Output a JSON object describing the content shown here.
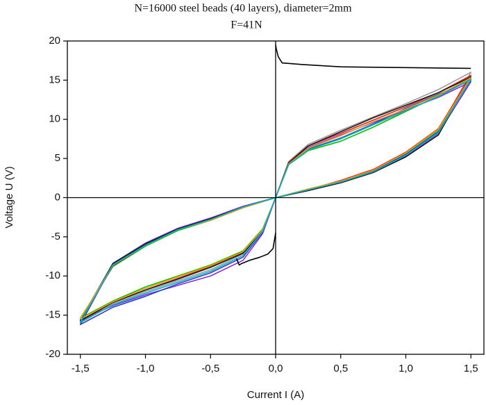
{
  "chart_data": {
    "type": "line",
    "title": "N=16000 steel beads (40 layers), diameter=2mm",
    "subtitle": "F=41N",
    "xlabel": "Current I (A)",
    "ylabel": "Voltage U (V)",
    "xlim": [
      -1.6,
      1.6
    ],
    "ylim": [
      -20,
      20
    ],
    "xticks": [
      {
        "value": -1.5,
        "label": "-1,5"
      },
      {
        "value": -1.0,
        "label": "-1,0"
      },
      {
        "value": -0.5,
        "label": "-0,5"
      },
      {
        "value": 0,
        "label": "0,0"
      },
      {
        "value": 0.5,
        "label": "0,5"
      },
      {
        "value": 1.0,
        "label": "1,0"
      },
      {
        "value": 1.5,
        "label": "1,5"
      }
    ],
    "yticks": [
      -20,
      -15,
      -10,
      -5,
      0,
      5,
      10,
      15,
      20
    ],
    "zero_lines": true,
    "series": [
      {
        "color": "#9a9a9a",
        "x": [
          0,
          0.25,
          0.5,
          0.75,
          1.0,
          1.25,
          1.5,
          1.25,
          1.0,
          0.75,
          0.5,
          0.25,
          0.1,
          0,
          -0.25,
          -0.5,
          -0.75,
          -1.0,
          -1.25,
          -1.5,
          -1.25,
          -1.0,
          -0.75,
          -0.5,
          -0.25,
          -0.1,
          0
        ],
        "values": [
          0,
          1.0,
          2.0,
          3.3,
          5.5,
          8.5,
          16.0,
          13.8,
          12.0,
          10.3,
          8.6,
          6.8,
          4.6,
          0,
          -1.2,
          -2.8,
          -4.0,
          -6.0,
          -8.6,
          -16.0,
          -13.6,
          -12.0,
          -10.6,
          -9.2,
          -7.2,
          -4.2,
          0
        ]
      },
      {
        "color": "#00c000",
        "x": [
          0,
          0.25,
          0.5,
          0.75,
          1.0,
          1.25,
          1.5,
          1.25,
          1.0,
          0.75,
          0.5,
          0.25,
          0.1,
          0,
          -0.25,
          -0.5,
          -0.75,
          -1.0,
          -1.25,
          -1.5,
          -1.25,
          -1.0,
          -0.75,
          -0.5,
          -0.25,
          -0.1,
          0
        ],
        "values": [
          0,
          1.1,
          2.1,
          3.4,
          5.6,
          8.6,
          15.2,
          13.0,
          11.0,
          9.0,
          7.2,
          6.0,
          4.2,
          0,
          -1.3,
          -2.9,
          -4.2,
          -6.2,
          -8.8,
          -15.4,
          -13.2,
          -11.4,
          -10.0,
          -8.6,
          -6.8,
          -4.0,
          0
        ]
      },
      {
        "color": "#8a2be2",
        "x": [
          0,
          0.25,
          0.5,
          0.75,
          1.0,
          1.25,
          1.5,
          1.25,
          1.0,
          0.75,
          0.5,
          0.25,
          0.1,
          0,
          -0.25,
          -0.5,
          -0.75,
          -1.0,
          -1.25,
          -1.5,
          -1.25,
          -1.0,
          -0.75,
          -0.5,
          -0.25,
          -0.1,
          0
        ],
        "values": [
          0,
          0.9,
          1.9,
          3.2,
          5.3,
          8.2,
          14.8,
          12.8,
          11.2,
          9.6,
          8.0,
          6.4,
          4.4,
          0,
          -1.1,
          -2.6,
          -3.9,
          -5.8,
          -8.4,
          -15.6,
          -13.8,
          -12.4,
          -11.2,
          -10.0,
          -8.0,
          -4.6,
          0
        ]
      },
      {
        "color": "#d62728",
        "x": [
          0,
          0.25,
          0.5,
          0.75,
          1.0,
          1.25,
          1.5,
          1.25,
          1.0,
          0.75,
          0.5,
          0.25,
          0.1,
          0,
          -0.25,
          -0.5,
          -0.75,
          -1.0,
          -1.25,
          -1.5,
          -1.25,
          -1.0,
          -0.75,
          -0.5,
          -0.25,
          -0.1,
          0
        ],
        "values": [
          0,
          1.0,
          2.2,
          3.6,
          5.8,
          8.8,
          15.6,
          13.4,
          11.6,
          9.9,
          8.2,
          6.6,
          4.5,
          0,
          -1.2,
          -2.7,
          -4.1,
          -6.1,
          -8.7,
          -15.8,
          -13.4,
          -11.8,
          -10.3,
          -8.8,
          -7.0,
          -4.3,
          0
        ]
      },
      {
        "color": "#2440c8",
        "x": [
          0,
          0.25,
          0.5,
          0.75,
          1.0,
          1.25,
          1.5,
          1.25,
          1.0,
          0.75,
          0.5,
          0.25,
          0.1,
          0,
          -0.25,
          -0.5,
          -0.75,
          -1.0,
          -1.25,
          -1.5,
          -1.25,
          -1.0,
          -0.75,
          -0.5,
          -0.25,
          -0.1,
          0
        ],
        "values": [
          0,
          1.0,
          2.0,
          3.4,
          5.5,
          8.4,
          15.0,
          13.2,
          11.4,
          9.4,
          7.6,
          6.2,
          4.3,
          0,
          -1.2,
          -2.8,
          -4.0,
          -6.0,
          -8.5,
          -16.2,
          -14.0,
          -12.6,
          -11.0,
          -9.6,
          -7.6,
          -4.4,
          0
        ]
      },
      {
        "color": "#1a1a1a",
        "x": [
          0,
          0.25,
          0.5,
          0.75,
          1.0,
          1.25,
          1.5,
          1.25,
          1.0,
          0.75,
          0.5,
          0.25,
          0.1,
          0,
          -0.25,
          -0.5,
          -0.75,
          -1.0,
          -1.25,
          -1.5,
          -1.25,
          -1.0,
          -0.75,
          -0.5,
          -0.25,
          -0.1,
          0
        ],
        "values": [
          0,
          0.9,
          1.9,
          3.2,
          5.2,
          8.0,
          15.4,
          13.4,
          11.8,
          10.2,
          8.4,
          6.6,
          4.4,
          0,
          -1.2,
          -2.7,
          -4.0,
          -5.9,
          -8.4,
          -15.7,
          -13.4,
          -11.8,
          -10.4,
          -8.9,
          -7.1,
          -4.2,
          0
        ]
      },
      {
        "color": "#ff9900",
        "x": [
          0,
          0.25,
          0.5,
          0.75,
          1.0,
          1.25,
          1.5,
          1.25,
          1.0,
          0.75,
          0.5,
          0.25,
          0.1,
          0,
          -0.25,
          -0.5,
          -0.75,
          -1.0,
          -1.25,
          -1.5,
          -1.25,
          -1.0,
          -0.75,
          -0.5,
          -0.25,
          -0.1,
          0
        ],
        "values": [
          0,
          1.1,
          2.1,
          3.5,
          5.7,
          8.7,
          15.3,
          13.1,
          11.3,
          9.7,
          7.9,
          6.3,
          4.3,
          0,
          -1.3,
          -2.9,
          -4.1,
          -6.1,
          -8.6,
          -15.5,
          -13.3,
          -11.6,
          -10.1,
          -8.7,
          -6.9,
          -4.1,
          0
        ]
      },
      {
        "color": "#00b5c8",
        "x": [
          0,
          0.25,
          0.5,
          0.75,
          1.0,
          1.25,
          1.5,
          1.25,
          1.0,
          0.75,
          0.5,
          0.25,
          0.1,
          0,
          -0.25,
          -0.5,
          -0.75,
          -1.0,
          -1.25,
          -1.5,
          -1.25,
          -1.0,
          -0.75,
          -0.5,
          -0.25,
          -0.1,
          0
        ],
        "values": [
          0,
          1.0,
          2.0,
          3.3,
          5.4,
          8.3,
          15.1,
          12.9,
          11.1,
          9.3,
          7.5,
          6.1,
          4.2,
          0,
          -1.2,
          -2.8,
          -4.1,
          -6.1,
          -8.6,
          -15.9,
          -13.7,
          -12.2,
          -10.8,
          -9.4,
          -7.4,
          -4.3,
          0
        ]
      },
      {
        "color": "#000000",
        "x": [
          0,
          0.005,
          0.02,
          0.05,
          0.2,
          0.5,
          1.0,
          1.5
        ],
        "values": [
          19.5,
          19.0,
          18.0,
          17.2,
          17.0,
          16.7,
          16.6,
          16.5
        ]
      },
      {
        "color": "#000000",
        "x": [
          0,
          -0.02,
          -0.06,
          -0.12,
          -0.2,
          -0.26,
          -0.28,
          -0.3
        ],
        "values": [
          -4.5,
          -6.5,
          -7.2,
          -7.6,
          -8.0,
          -8.4,
          -8.6,
          -7.8
        ]
      }
    ]
  }
}
